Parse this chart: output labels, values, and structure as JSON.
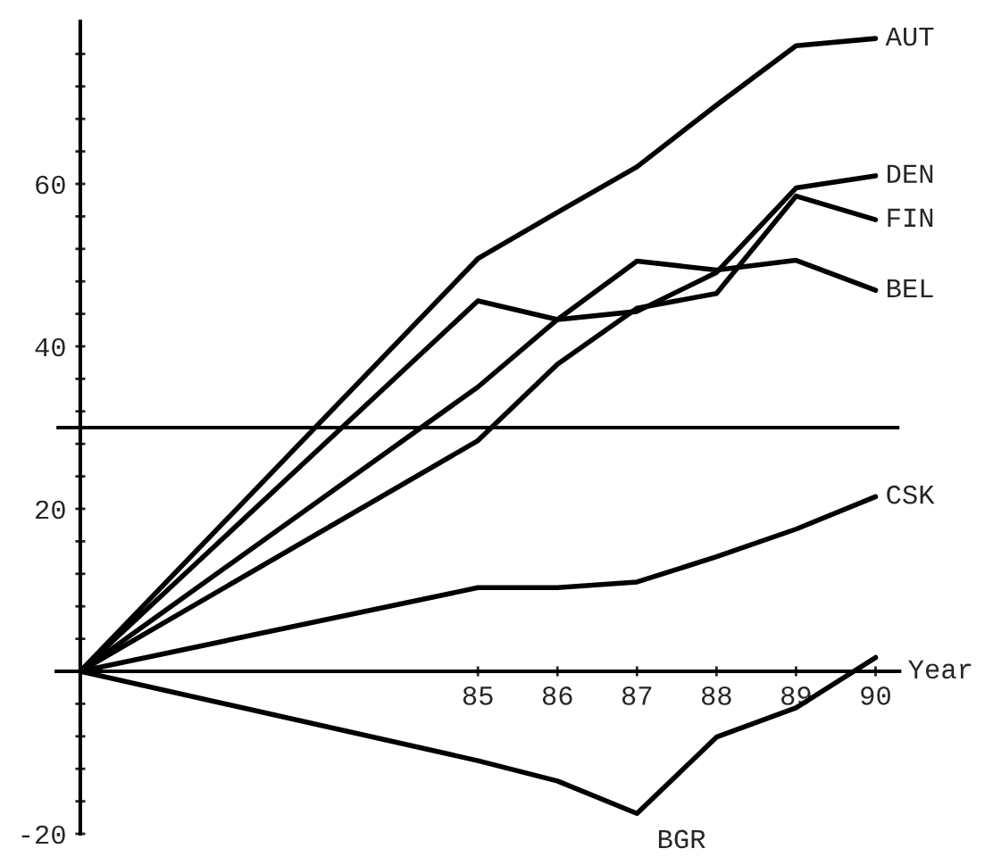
{
  "chart_data": {
    "type": "line",
    "xlabel": "Year",
    "x": [
      80,
      85,
      86,
      87,
      88,
      89,
      90
    ],
    "series": [
      {
        "name": "AUT",
        "color": "#000000",
        "values": [
          0,
          50.8,
          56.5,
          62.1,
          69.7,
          77,
          77.9
        ]
      },
      {
        "name": "DEN",
        "color": "#000000",
        "values": [
          0,
          45.6,
          43.3,
          44.3,
          49.1,
          59.5,
          61
        ]
      },
      {
        "name": "FIN",
        "color": "#000000",
        "values": [
          0,
          28.4,
          37.8,
          44.7,
          46.5,
          58.5,
          55.6
        ]
      },
      {
        "name": "BEL",
        "color": "#000000",
        "values": [
          0,
          35,
          43.3,
          50.5,
          49.4,
          50.6,
          46.9
        ]
      },
      {
        "name": "CSK",
        "color": "#000000",
        "values": [
          0,
          10.3,
          10.3,
          11,
          14.1,
          17.5,
          21.5
        ]
      },
      {
        "name": "BGR",
        "color": "#000000",
        "values": [
          0,
          -11,
          -13.5,
          -17.5,
          -8.1,
          -4.5,
          1.7
        ]
      }
    ],
    "xlim": [
      79.7,
      90.3
    ],
    "ylim": [
      -20,
      80
    ],
    "xticks": [
      85,
      86,
      87,
      88,
      89,
      90
    ],
    "yticks": [
      -20,
      {
        "value": -16,
        "label": null
      },
      {
        "value": -12,
        "label": null
      },
      {
        "value": -8,
        "label": null
      },
      {
        "value": -4,
        "label": null
      },
      {
        "value": 4,
        "label": null
      },
      {
        "value": 8,
        "label": null
      },
      {
        "value": 12,
        "label": null
      },
      {
        "value": 16,
        "label": null
      },
      20,
      {
        "value": 24,
        "label": null
      },
      {
        "value": 28,
        "label": null
      },
      {
        "value": 32,
        "label": null
      },
      {
        "value": 36,
        "label": null
      },
      40,
      {
        "value": 44,
        "label": null
      },
      {
        "value": 48,
        "label": null
      },
      {
        "value": 52,
        "label": null
      },
      {
        "value": 56,
        "label": null
      },
      60,
      {
        "value": 64,
        "label": null
      },
      {
        "value": 68,
        "label": null
      },
      {
        "value": 72,
        "label": null
      },
      {
        "value": 76,
        "label": null
      }
    ],
    "ref_lines": [
      {
        "axis": "y",
        "value": 30,
        "color": "#000000"
      }
    ],
    "grid": false,
    "legend": false
  }
}
